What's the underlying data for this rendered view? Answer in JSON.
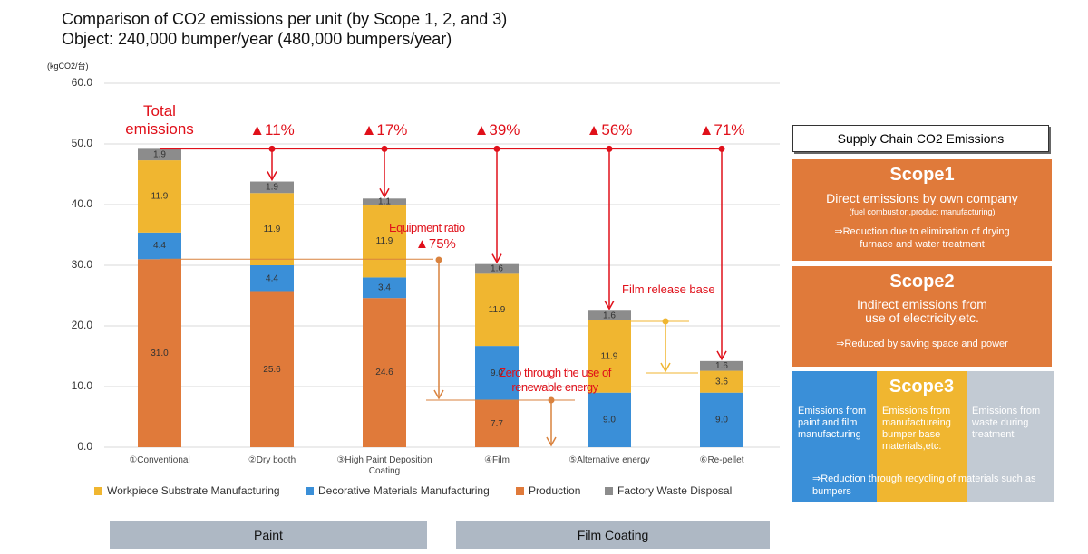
{
  "chart_data": {
    "type": "stacked_bar",
    "title": "Comparison of CO2 emissions per unit (by Scope 1, 2, and 3)",
    "subtitle": "Object: 240,000 bumper/year (480,000 bumpers/year)",
    "y_label": "(kgCO2/台)",
    "categories": [
      "①Conventional",
      "②Dry booth",
      "③High Paint Deposition Coating",
      "④Film",
      "⑤Alternative energy",
      "⑥Re-pellet"
    ],
    "series": [
      {
        "name": "Workpiece Substrate Manufacturing",
        "color": "#f0b630",
        "values": [
          11.9,
          11.9,
          11.9,
          11.9,
          11.9,
          3.6
        ],
        "value_labels": [
          "11.9",
          "11.9",
          "11.9",
          "11.9",
          "11.9",
          "3.6"
        ]
      },
      {
        "name": "Decorative Materials Manufacturing",
        "color": "#3a8fd8",
        "values": [
          4.4,
          4.4,
          3.4,
          9.0,
          9.0,
          9.0
        ],
        "value_labels": [
          "4.4",
          "4.4",
          "3.4",
          "9.0",
          "9.0",
          "9.0"
        ]
      },
      {
        "name": "Production",
        "color": "#e07a3a",
        "values": [
          31.0,
          25.6,
          24.6,
          7.7,
          null,
          null
        ],
        "value_labels": [
          "31.0",
          "25.6",
          "24.6",
          "7.7",
          null,
          null
        ]
      },
      {
        "name": "Factory Waste Disposal",
        "color": "#8c8c8c",
        "values": [
          1.9,
          1.9,
          1.1,
          1.6,
          1.6,
          1.6
        ],
        "value_labels": [
          "1.9",
          "1.9",
          "1.1",
          "1.6",
          "1.6",
          "1.6"
        ]
      }
    ],
    "ylim": [
      0,
      60
    ],
    "yticks": [
      {
        "value": 0,
        "label": "0.0"
      },
      {
        "value": 10,
        "label": "10.0"
      },
      {
        "value": 20,
        "label": "20.0"
      },
      {
        "value": 30,
        "label": "30.0"
      },
      {
        "value": 40,
        "label": "40.0"
      },
      {
        "value": 50,
        "label": "50.0"
      },
      {
        "value": 60,
        "label": "60.0"
      }
    ],
    "grid": true,
    "annotations": [
      "Total emissions",
      "▲11%",
      "▲17%",
      "▲39%",
      "▲56%",
      "▲71%",
      "Equipment ratio",
      "▲75%",
      "Film release base",
      "Zero through the use of renewable energy"
    ]
  },
  "group_labels": [
    "Paint",
    "Film Coating"
  ],
  "side_panel": {
    "title": "Supply Chain CO2 Emissions",
    "scope1": {
      "heading": "Scope1",
      "text": "Direct emissions by own company",
      "detail": "(fuel combustion,product manufacturing)",
      "note": "⇒Reduction due to elimination of drying furnace and water treatment"
    },
    "scope2": {
      "heading": "Scope2",
      "text": "Indirect emissions from use of electricity,etc.",
      "note": "⇒Reduced by saving space and power"
    },
    "scope3": {
      "heading": "Scope3",
      "columns": [
        "Emissions from paint and film manufacturing",
        "Emissions from manufactureing bumper base materials,etc.",
        "Emissions from waste during treatment"
      ],
      "note": "⇒Reduction through recycling of materials such as bumpers"
    }
  }
}
